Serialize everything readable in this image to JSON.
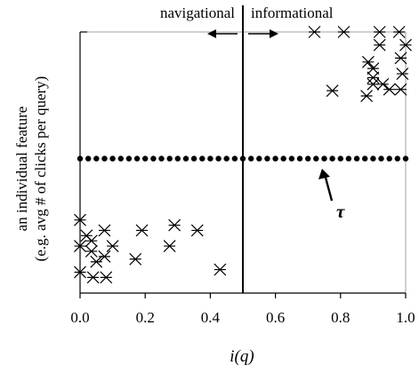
{
  "chart_data": {
    "type": "scatter",
    "title": "",
    "xlabel": "i(q)",
    "ylabel_line1": "an individual feature",
    "ylabel_line2": "(e.g. avg # of clicks per query)",
    "xlim": [
      0.0,
      1.0
    ],
    "ylim": [
      0.0,
      1.0
    ],
    "x_ticks": [
      0.0,
      0.2,
      0.4,
      0.6,
      0.8,
      1.0
    ],
    "x_tick_labels": [
      "0.0",
      "0.2",
      "0.4",
      "0.6",
      "0.8",
      "1.0"
    ],
    "grid": false,
    "annotations": {
      "left_label": "navigational",
      "right_label": "informational",
      "divider_x": 0.5,
      "threshold_label": "τ",
      "threshold_y": 0.515
    },
    "points": [
      {
        "x": 0.0,
        "y": 0.28
      },
      {
        "x": 0.0,
        "y": 0.18
      },
      {
        "x": 0.0,
        "y": 0.08
      },
      {
        "x": 0.02,
        "y": 0.22
      },
      {
        "x": 0.035,
        "y": 0.2
      },
      {
        "x": 0.035,
        "y": 0.16
      },
      {
        "x": 0.04,
        "y": 0.06
      },
      {
        "x": 0.05,
        "y": 0.12
      },
      {
        "x": 0.075,
        "y": 0.24
      },
      {
        "x": 0.075,
        "y": 0.14
      },
      {
        "x": 0.08,
        "y": 0.06
      },
      {
        "x": 0.1,
        "y": 0.18
      },
      {
        "x": 0.17,
        "y": 0.13
      },
      {
        "x": 0.19,
        "y": 0.24
      },
      {
        "x": 0.275,
        "y": 0.18
      },
      {
        "x": 0.29,
        "y": 0.26
      },
      {
        "x": 0.36,
        "y": 0.24
      },
      {
        "x": 0.43,
        "y": 0.09
      },
      {
        "x": 0.72,
        "y": 1.0
      },
      {
        "x": 0.775,
        "y": 0.775
      },
      {
        "x": 0.81,
        "y": 1.0
      },
      {
        "x": 0.88,
        "y": 0.755
      },
      {
        "x": 0.885,
        "y": 0.885
      },
      {
        "x": 0.9,
        "y": 0.86
      },
      {
        "x": 0.9,
        "y": 0.8
      },
      {
        "x": 0.9,
        "y": 0.825
      },
      {
        "x": 0.92,
        "y": 0.95
      },
      {
        "x": 0.92,
        "y": 1.0
      },
      {
        "x": 0.93,
        "y": 0.8
      },
      {
        "x": 0.95,
        "y": 0.78
      },
      {
        "x": 0.98,
        "y": 1.0
      },
      {
        "x": 0.985,
        "y": 0.9
      },
      {
        "x": 0.99,
        "y": 0.84
      },
      {
        "x": 0.985,
        "y": 0.78
      },
      {
        "x": 1.0,
        "y": 0.95
      }
    ]
  }
}
